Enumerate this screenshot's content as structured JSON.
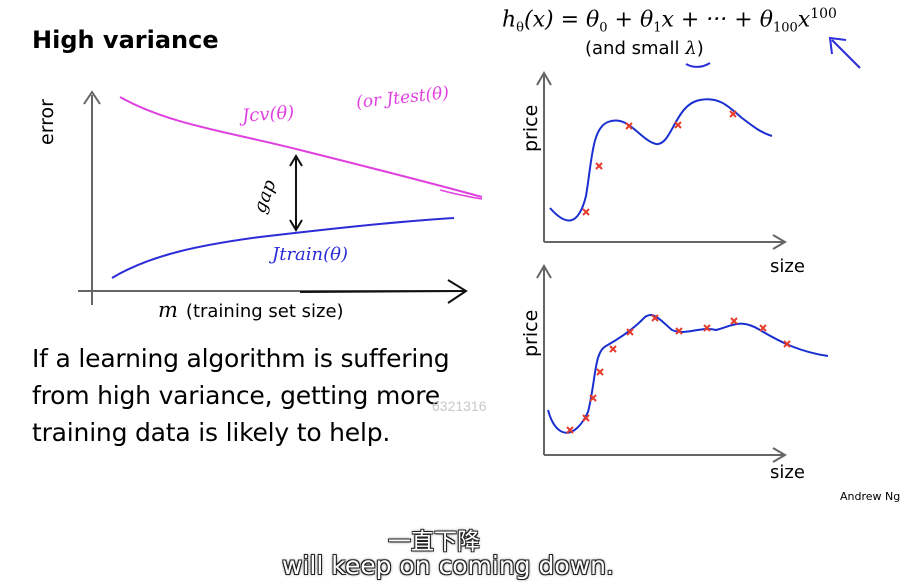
{
  "slide": {
    "title": "High variance",
    "formula": {
      "h": "h",
      "h_sub": "θ",
      "rest": "(x) = θ",
      "t0": "0",
      "plus1": " + θ",
      "t1": "1",
      "mid": "x + ··· + θ",
      "t100": "100",
      "x": "x",
      "exp": "100"
    },
    "and_small": "(and small ",
    "lambda": "λ",
    "close_paren": ")",
    "error_axis_label": "error",
    "m_symbol": "m",
    "x_axis_label": "(training set size)",
    "jcv_label": "Jcv(θ)",
    "jtest_label": "(or Jtest(θ)",
    "jtrain_label": "Jtrain(θ)",
    "gap_label": "gap",
    "paragraph": "If a learning algorithm is suffering from high variance, getting more training data is likely to help.",
    "price_label_top": "price",
    "size_label_top": "size",
    "price_label_bottom": "price",
    "size_label_bottom": "size",
    "credit": "Andrew Ng",
    "watermark": "6321316"
  },
  "subtitles": {
    "chinese": "一直下降",
    "english": "will keep on coming down."
  },
  "colors": {
    "cv_curve": "#e040e0",
    "train_curve": "#2c2cd8",
    "fit_curve": "#1a2fd0",
    "data_marker": "#e53b2a"
  }
}
